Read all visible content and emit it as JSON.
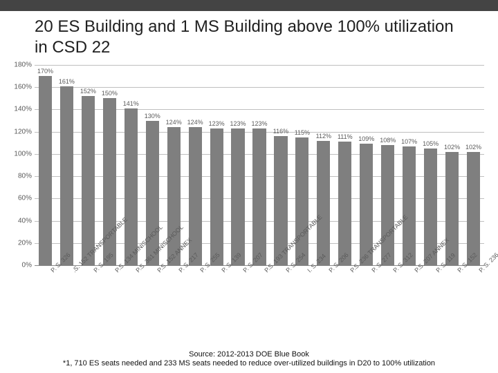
{
  "title": "20 ES Building and 1 MS Building above 100% utilization in CSD 22",
  "chart": {
    "type": "bar",
    "ymin": 0,
    "ymax": 180,
    "ytick_step": 20,
    "ytick_suffix": "%",
    "bar_color": "#7f7f7f",
    "grid_color": "#bfbfbf",
    "label_fontsize": 10,
    "bar_label_fontsize": 9,
    "bars": [
      {
        "label": "P. S. 326",
        "value": 170,
        "text": "170%"
      },
      {
        "label": ".S. 152 TRANSPORTABLE",
        "value": 161,
        "text": "161%"
      },
      {
        "label": "P. S. 195",
        "value": 152,
        "text": "152%"
      },
      {
        "label": "P.S. 134 MINISCHOOL",
        "value": 150,
        "text": "150%"
      },
      {
        "label": "P.S. 361 MINISCHOOL",
        "value": 141,
        "text": "141%"
      },
      {
        "label": "P.S. 152 ANNEX",
        "value": 130,
        "text": "130%"
      },
      {
        "label": "P. S. 217",
        "value": 124,
        "text": "124%"
      },
      {
        "label": "P. S. 255",
        "value": 124,
        "text": "124%"
      },
      {
        "label": "P. S. 139",
        "value": 123,
        "text": "123%"
      },
      {
        "label": "P. S. 207",
        "value": 123,
        "text": "123%"
      },
      {
        "label": "P.S. 193 TRANSPORTABLE",
        "value": 123,
        "text": "123%"
      },
      {
        "label": "P. S. 254",
        "value": 116,
        "text": "116%"
      },
      {
        "label": "I. S. 234",
        "value": 115,
        "text": "115%"
      },
      {
        "label": "P. S. 206",
        "value": 112,
        "text": "112%"
      },
      {
        "label": "P.S. 236 TRANSPORTABLE",
        "value": 111,
        "text": "111%"
      },
      {
        "label": "P. S. 277",
        "value": 109,
        "text": "109%"
      },
      {
        "label": "P. S. 312",
        "value": 108,
        "text": "108%"
      },
      {
        "label": "P.S. 207 ANNEX",
        "value": 107,
        "text": "107%"
      },
      {
        "label": "P. S. 119",
        "value": 105,
        "text": "105%"
      },
      {
        "label": "P. S. 152",
        "value": 102,
        "text": "102%"
      },
      {
        "label": "P. S. 236",
        "value": 102,
        "text": "102%"
      }
    ]
  },
  "footer_line1": "Source: 2012-2013 DOE Blue Book",
  "footer_line2": "*1, 710 ES seats needed and 233 MS seats needed to reduce over-utilized buildings in D20 to 100% utilization"
}
